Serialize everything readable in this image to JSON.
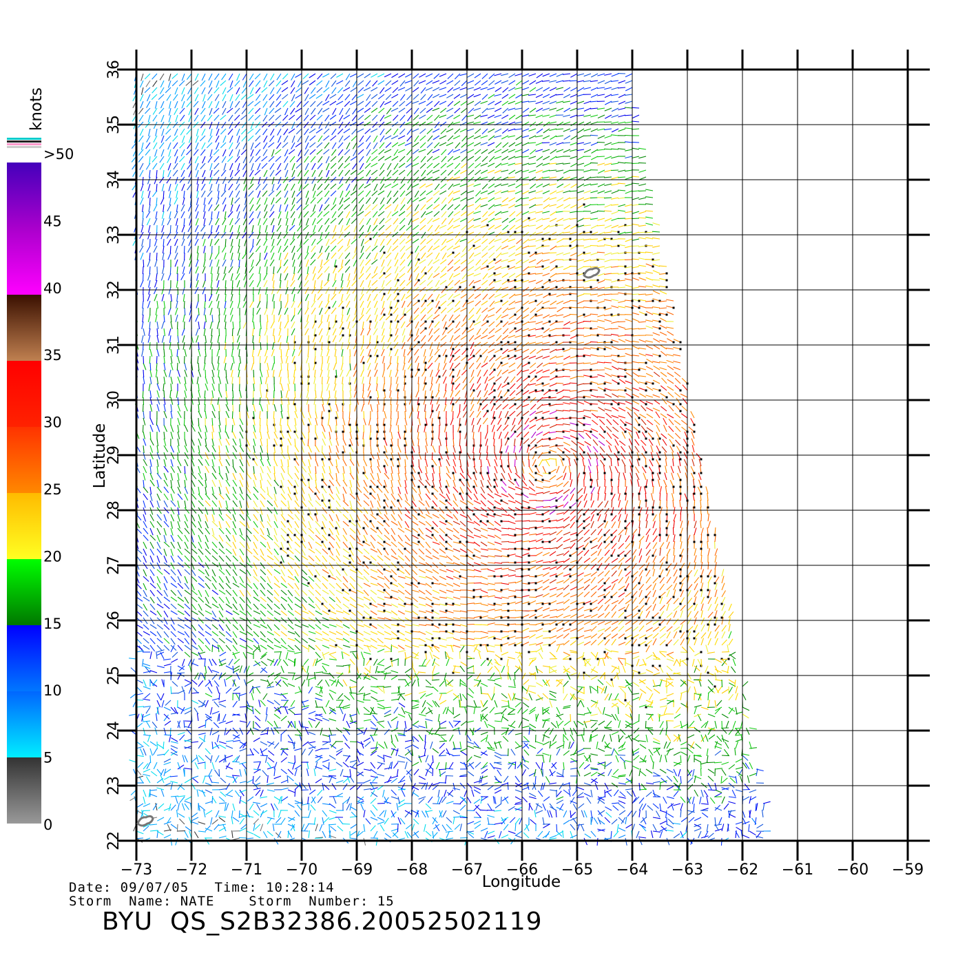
{
  "chart_data": {
    "type": "wind-vector-map",
    "xlabel": "Longitude",
    "ylabel": "Latitude",
    "xlim": [
      -73,
      -59
    ],
    "ylim": [
      22,
      36
    ],
    "x_ticks": [
      "-73",
      "-72",
      "-71",
      "-70",
      "-69",
      "-68",
      "-67",
      "-66",
      "-65",
      "-64",
      "-63",
      "-62",
      "-61",
      "-60",
      "-59"
    ],
    "y_ticks": [
      "22",
      "23",
      "24",
      "25",
      "26",
      "27",
      "28",
      "29",
      "30",
      "31",
      "32",
      "33",
      "34",
      "35",
      "36"
    ],
    "grid": true,
    "swath": {
      "description": "satellite swath; data only between western edge lon -73 and eastern edge",
      "east_edge_at_lat36": -64,
      "east_edge_at_lat22": -61.5,
      "storm_center": [
        -65.5,
        28.8
      ]
    },
    "outline_features": [
      {
        "name": "island-bermuda",
        "lon": -64.75,
        "lat": 32.3
      },
      {
        "name": "island-southwest",
        "lon": -72.85,
        "lat": 22.35
      }
    ]
  },
  "legend": {
    "unit": "knots",
    "bins": [
      {
        "label": "0",
        "from": "#999999",
        "to": "#333333"
      },
      {
        "label": "5",
        "from": "#00eeff",
        "to": "#0066ff"
      },
      {
        "label": "10",
        "from": "#0077ff",
        "to": "#0000ff"
      },
      {
        "label": "15",
        "from": "#007700",
        "to": "#00ff00"
      },
      {
        "label": "20",
        "from": "#ffff22",
        "to": "#ffbb00"
      },
      {
        "label": "25",
        "from": "#ff8800",
        "to": "#ff3300"
      },
      {
        "label": "30",
        "from": "#ff2200",
        "to": "#ff0000"
      },
      {
        "label": "35",
        "from": "#c08050",
        "to": "#3a1000"
      },
      {
        "label": "40",
        "from": "#ff00ff",
        "to": "#aa00cc"
      },
      {
        "label": "45",
        "from": "#aa00cc",
        "to": "#4400bb"
      },
      {
        "label": ">50",
        "from": "#4400bb",
        "to": "#4400bb"
      }
    ]
  },
  "footer": {
    "date_line": "Date: 09/07/05   Time: 10:28:14",
    "storm_line": "Storm  Name: NATE    Storm  Number: 15",
    "file_id": "BYU  QS_S2B32386.20052502119"
  }
}
